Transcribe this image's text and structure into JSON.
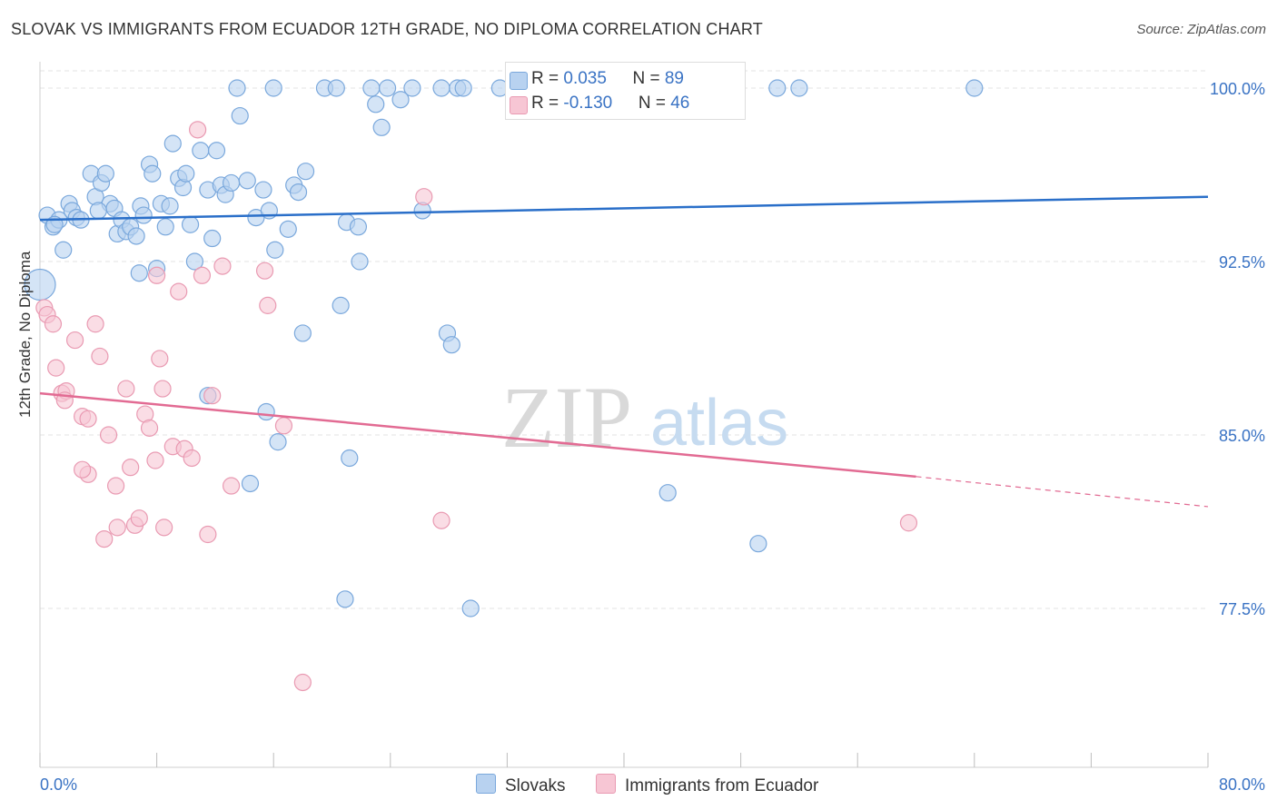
{
  "header": {
    "title": "SLOVAK VS IMMIGRANTS FROM ECUADOR 12TH GRADE, NO DIPLOMA CORRELATION CHART",
    "source": "Source: ZipAtlas.com"
  },
  "watermark": {
    "zip": "ZIP",
    "atlas": "atlas"
  },
  "legend_top": {
    "rows": [
      {
        "r_label": "R = ",
        "r_value": "0.035",
        "n_label": "N = ",
        "n_value": "89"
      },
      {
        "r_label": "R = ",
        "r_value": "-0.130",
        "n_label": "N = ",
        "n_value": "46"
      }
    ]
  },
  "colors": {
    "slovaks_fill": "#b8d2f0",
    "slovaks_stroke": "#7aa8dc",
    "slovaks_line": "#2a6fc9",
    "ecuador_fill": "#f7c6d4",
    "ecuador_stroke": "#e99ab2",
    "ecuador_line": "#e26b93",
    "axis_tick_text": "#3a73c4",
    "grid": "#e3e3e3"
  },
  "chart_data": {
    "type": "scatter",
    "title": "SLOVAK VS IMMIGRANTS FROM ECUADOR 12TH GRADE, NO DIPLOMA CORRELATION CHART",
    "xlabel": "",
    "ylabel": "12th Grade, No Diploma",
    "xlim": [
      0,
      80
    ],
    "ylim": [
      71.5,
      100.8
    ],
    "x_tick_labels": [
      "0.0%",
      "80.0%"
    ],
    "y_ticks": [
      77.5,
      85.0,
      92.5,
      100.0
    ],
    "y_tick_labels": [
      "77.5%",
      "85.0%",
      "92.5%",
      "100.0%"
    ],
    "grid": true,
    "legend_position": "bottom-center",
    "series": [
      {
        "name": "Slovaks",
        "r": 0.035,
        "n": 89,
        "trend": {
          "x": [
            0,
            80
          ],
          "y": [
            94.3,
            95.3
          ]
        },
        "points": [
          [
            0.5,
            94.5
          ],
          [
            0.9,
            94.0
          ],
          [
            1.3,
            94.3
          ],
          [
            1.6,
            93.0
          ],
          [
            2.0,
            95.0
          ],
          [
            2.2,
            94.7
          ],
          [
            2.5,
            94.4
          ],
          [
            2.8,
            94.3
          ],
          [
            1.0,
            94.1
          ],
          [
            0.0,
            91.5
          ],
          [
            3.5,
            96.3
          ],
          [
            3.8,
            95.3
          ],
          [
            4.2,
            95.9
          ],
          [
            4.5,
            96.3
          ],
          [
            4.8,
            95.0
          ],
          [
            5.1,
            94.8
          ],
          [
            5.3,
            93.7
          ],
          [
            5.6,
            94.3
          ],
          [
            5.9,
            93.8
          ],
          [
            6.2,
            94.0
          ],
          [
            6.6,
            93.6
          ],
          [
            6.9,
            94.9
          ],
          [
            7.1,
            94.5
          ],
          [
            7.5,
            96.7
          ],
          [
            7.7,
            96.3
          ],
          [
            8.0,
            92.2
          ],
          [
            8.3,
            95.0
          ],
          [
            8.6,
            94.0
          ],
          [
            8.9,
            94.9
          ],
          [
            9.1,
            97.6
          ],
          [
            9.5,
            96.1
          ],
          [
            9.8,
            95.7
          ],
          [
            10.0,
            96.3
          ],
          [
            10.3,
            94.1
          ],
          [
            10.6,
            92.5
          ],
          [
            11.0,
            97.3
          ],
          [
            11.5,
            95.6
          ],
          [
            11.8,
            93.5
          ],
          [
            12.1,
            97.3
          ],
          [
            12.4,
            95.8
          ],
          [
            12.7,
            95.4
          ],
          [
            13.1,
            95.9
          ],
          [
            13.7,
            98.8
          ],
          [
            14.2,
            96.0
          ],
          [
            14.8,
            94.4
          ],
          [
            15.3,
            95.6
          ],
          [
            15.7,
            94.7
          ],
          [
            16.1,
            93.0
          ],
          [
            17.0,
            93.9
          ],
          [
            17.4,
            95.8
          ],
          [
            17.7,
            95.5
          ],
          [
            18.2,
            96.4
          ],
          [
            13.5,
            100.0
          ],
          [
            16.0,
            100.0
          ],
          [
            19.5,
            100.0
          ],
          [
            20.3,
            100.0
          ],
          [
            22.7,
            100.0
          ],
          [
            23.8,
            100.0
          ],
          [
            25.5,
            100.0
          ],
          [
            27.5,
            100.0
          ],
          [
            28.6,
            100.0
          ],
          [
            29.0,
            100.0
          ],
          [
            31.5,
            100.0
          ],
          [
            34.0,
            100.0
          ],
          [
            50.5,
            100.0
          ],
          [
            52.0,
            100.0
          ],
          [
            64.0,
            100.0
          ],
          [
            23.0,
            99.3
          ],
          [
            24.7,
            99.5
          ],
          [
            23.4,
            98.3
          ],
          [
            20.6,
            90.6
          ],
          [
            18.0,
            89.4
          ],
          [
            21.0,
            94.2
          ],
          [
            21.8,
            94.0
          ],
          [
            21.9,
            92.5
          ],
          [
            26.2,
            94.7
          ],
          [
            27.9,
            89.4
          ],
          [
            28.2,
            88.9
          ],
          [
            11.5,
            86.7
          ],
          [
            15.5,
            86.0
          ],
          [
            16.3,
            84.7
          ],
          [
            21.2,
            84.0
          ],
          [
            14.4,
            82.9
          ],
          [
            43.0,
            82.5
          ],
          [
            49.2,
            80.3
          ],
          [
            20.9,
            77.9
          ],
          [
            29.5,
            77.5
          ],
          [
            4.0,
            94.7
          ],
          [
            6.8,
            92.0
          ]
        ]
      },
      {
        "name": "Immigrants from Ecuador",
        "r": -0.13,
        "n": 46,
        "trend": {
          "x": [
            0,
            60
          ],
          "y": [
            86.8,
            83.2
          ]
        },
        "trend_dashed": {
          "x": [
            60,
            80
          ],
          "y": [
            83.2,
            81.9
          ]
        },
        "points": [
          [
            0.3,
            90.5
          ],
          [
            0.5,
            90.2
          ],
          [
            0.9,
            89.8
          ],
          [
            1.1,
            87.9
          ],
          [
            1.5,
            86.8
          ],
          [
            1.8,
            86.9
          ],
          [
            2.4,
            89.1
          ],
          [
            2.9,
            85.8
          ],
          [
            3.3,
            85.7
          ],
          [
            3.8,
            89.8
          ],
          [
            4.1,
            88.4
          ],
          [
            4.7,
            85.0
          ],
          [
            5.2,
            82.8
          ],
          [
            5.9,
            87.0
          ],
          [
            6.2,
            83.6
          ],
          [
            6.5,
            81.1
          ],
          [
            6.8,
            81.4
          ],
          [
            7.2,
            85.9
          ],
          [
            7.5,
            85.3
          ],
          [
            7.9,
            83.9
          ],
          [
            8.2,
            88.3
          ],
          [
            8.4,
            87.0
          ],
          [
            9.1,
            84.5
          ],
          [
            9.5,
            91.2
          ],
          [
            9.9,
            84.4
          ],
          [
            10.4,
            84.0
          ],
          [
            10.8,
            98.2
          ],
          [
            11.1,
            91.9
          ],
          [
            11.5,
            80.7
          ],
          [
            12.5,
            92.3
          ],
          [
            13.1,
            82.8
          ],
          [
            15.4,
            92.1
          ],
          [
            15.6,
            90.6
          ],
          [
            16.7,
            85.4
          ],
          [
            18.0,
            74.3
          ],
          [
            26.3,
            95.3
          ],
          [
            27.5,
            81.3
          ],
          [
            59.5,
            81.2
          ],
          [
            3.3,
            83.3
          ],
          [
            2.9,
            83.5
          ],
          [
            4.4,
            80.5
          ],
          [
            5.3,
            81.0
          ],
          [
            8.5,
            81.0
          ],
          [
            11.8,
            86.7
          ],
          [
            1.7,
            86.5
          ],
          [
            8.0,
            91.9
          ]
        ]
      }
    ]
  }
}
